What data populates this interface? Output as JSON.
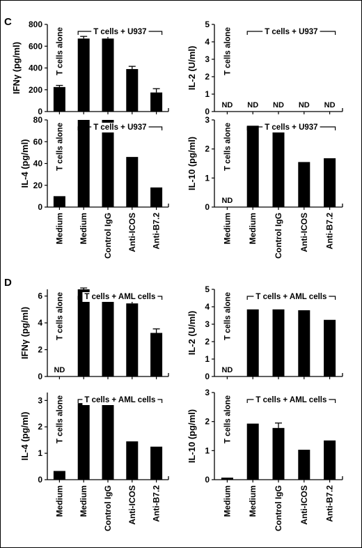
{
  "figure": {
    "border_color": "#000000"
  },
  "panel_letters": [
    "C",
    "D"
  ],
  "chart_data": [
    {
      "panel": "C",
      "position": "top-left",
      "type": "bar",
      "ylabel": "IFNγ (pg/ml)",
      "ylim": [
        0,
        800
      ],
      "yticks": [
        0,
        200,
        400,
        600,
        800
      ],
      "categories": [
        "Medium",
        "Medium",
        "Control IgG",
        "Anti-ICOS",
        "Anti-B7.2"
      ],
      "values": [
        225,
        670,
        670,
        390,
        175
      ],
      "errors": [
        15,
        20,
        20,
        25,
        35
      ],
      "nd": [
        false,
        false,
        false,
        false,
        false
      ],
      "alone_label": "T cells alone",
      "group_label": "T cells + U937",
      "show_category_labels": false
    },
    {
      "panel": "C",
      "position": "top-right",
      "type": "bar",
      "ylabel": "IL-2 (U/ml)",
      "ylim": [
        0,
        5
      ],
      "yticks": [
        0,
        1,
        2,
        3,
        4,
        5
      ],
      "categories": [
        "Medium",
        "Medium",
        "Control IgG",
        "Anti-ICOS",
        "Anti-B7.2"
      ],
      "values": [
        null,
        null,
        null,
        null,
        null
      ],
      "errors": [
        0,
        0,
        0,
        0,
        0
      ],
      "nd": [
        true,
        true,
        true,
        true,
        true
      ],
      "nd_text": "ND",
      "alone_label": "T cells alone",
      "group_label": "T cells + U937",
      "show_category_labels": false
    },
    {
      "panel": "C",
      "position": "bottom-left",
      "type": "bar",
      "ylabel": "IL-4 (pg/ml)",
      "ylim": [
        0,
        80
      ],
      "yticks": [
        0,
        20,
        40,
        60,
        80
      ],
      "categories": [
        "Medium",
        "Medium",
        "Control IgG",
        "Anti-ICOS",
        "Anti-B7.2"
      ],
      "values": [
        10,
        80,
        80,
        46,
        18
      ],
      "errors": [
        0,
        0,
        0,
        0,
        0
      ],
      "nd": [
        false,
        false,
        false,
        false,
        false
      ],
      "alone_label": "T cells alone",
      "group_label": "T cells + U937",
      "show_category_labels": true
    },
    {
      "panel": "C",
      "position": "bottom-right",
      "type": "bar",
      "ylabel": "IL-10 (pg/ml)",
      "ylim": [
        0,
        3
      ],
      "yticks": [
        0,
        1,
        2,
        3
      ],
      "categories": [
        "Medium",
        "Medium",
        "Control IgG",
        "Anti-ICOS",
        "Anti-B7.2"
      ],
      "values": [
        null,
        2.8,
        2.7,
        1.55,
        1.68
      ],
      "errors": [
        0,
        0,
        0.15,
        0,
        0
      ],
      "nd": [
        true,
        false,
        false,
        false,
        false
      ],
      "nd_text": "ND",
      "alone_label": "T cells alone",
      "group_label": "T cells + U937",
      "show_category_labels": true
    },
    {
      "panel": "D",
      "position": "top-left",
      "type": "bar",
      "ylabel": "IFNγ (pg/ml)",
      "ylim": [
        0,
        6.5
      ],
      "yticks": [
        0,
        2,
        4,
        6
      ],
      "categories": [
        "Medium",
        "Medium",
        "Control IgG",
        "Anti-ICOS",
        "Anti-B7.2"
      ],
      "values": [
        null,
        6.5,
        5.75,
        5.45,
        3.25
      ],
      "errors": [
        0,
        0.1,
        0.12,
        0.25,
        0.3
      ],
      "nd": [
        true,
        false,
        false,
        false,
        false
      ],
      "nd_text": "ND",
      "alone_label": "T cells alone",
      "group_label": "T cells + AML cells",
      "show_category_labels": false
    },
    {
      "panel": "D",
      "position": "top-right",
      "type": "bar",
      "ylabel": "IL-2 (U/ml)",
      "ylim": [
        0,
        5
      ],
      "yticks": [
        0,
        1,
        2,
        3,
        4,
        5
      ],
      "categories": [
        "Medium",
        "Medium",
        "Control IgG",
        "Anti-ICOS",
        "Anti-B7.2"
      ],
      "values": [
        null,
        3.85,
        3.85,
        3.8,
        3.25
      ],
      "errors": [
        0,
        0,
        0,
        0,
        0
      ],
      "nd": [
        true,
        false,
        false,
        false,
        false
      ],
      "nd_text": "ND",
      "alone_label": "T cells alone",
      "group_label": "T cells + AML cells",
      "show_category_labels": false
    },
    {
      "panel": "D",
      "position": "bottom-left",
      "type": "bar",
      "ylabel": "IL-4 (pg/ml)",
      "ylim": [
        0,
        3.3
      ],
      "yticks": [
        0,
        1,
        2,
        3
      ],
      "categories": [
        "Medium",
        "Medium",
        "Control IgG",
        "Anti-ICOS",
        "Anti-B7.2"
      ],
      "values": [
        0.33,
        2.9,
        3.1,
        1.45,
        1.25
      ],
      "errors": [
        0,
        0,
        0,
        0,
        0
      ],
      "nd": [
        false,
        false,
        false,
        false,
        false
      ],
      "alone_label": "T cells alone",
      "group_label": "T cells + AML cells",
      "show_category_labels": true
    },
    {
      "panel": "D",
      "position": "bottom-right",
      "type": "bar",
      "ylabel": "IL-10 (pg/ml)",
      "ylim": [
        0,
        3
      ],
      "yticks": [
        0,
        1,
        2,
        3
      ],
      "categories": [
        "Medium",
        "Medium",
        "Control IgG",
        "Anti-ICOS",
        "Anti-B7.2"
      ],
      "values": [
        0.07,
        1.93,
        1.78,
        1.03,
        1.35
      ],
      "errors": [
        0,
        0,
        0.17,
        0,
        0
      ],
      "nd": [
        false,
        false,
        false,
        false,
        false
      ],
      "alone_label": "T cells alone",
      "group_label": "T cells + AML cells",
      "show_category_labels": true
    }
  ]
}
